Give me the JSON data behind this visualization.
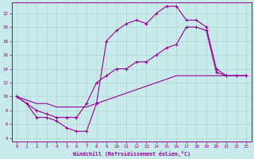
{
  "xlabel": "Windchill (Refroidissement éolien,°C)",
  "bg_color": "#c8eaea",
  "line_color": "#990099",
  "xlim": [
    -0.5,
    23.5
  ],
  "ylim": [
    3.5,
    23.5
  ],
  "xticks": [
    0,
    1,
    2,
    3,
    4,
    5,
    6,
    7,
    8,
    9,
    10,
    11,
    12,
    13,
    14,
    15,
    16,
    17,
    18,
    19,
    20,
    21,
    22,
    23
  ],
  "yticks": [
    4,
    6,
    8,
    10,
    12,
    14,
    16,
    18,
    20,
    22
  ],
  "curve1_x": [
    0,
    1,
    2,
    3,
    4,
    5,
    6,
    7,
    8,
    9,
    10,
    11,
    12,
    13,
    14,
    15,
    16,
    17,
    18,
    19,
    20,
    21,
    22,
    23
  ],
  "curve1_y": [
    10,
    9,
    7,
    7,
    6.5,
    5.5,
    5,
    5,
    9,
    18,
    19.5,
    20.5,
    21,
    20.5,
    22,
    23,
    23,
    21,
    21,
    20,
    14,
    13,
    13,
    13
  ],
  "curve2_x": [
    0,
    1,
    2,
    3,
    4,
    5,
    6,
    7,
    8,
    9,
    10,
    11,
    12,
    13,
    14,
    15,
    16,
    17,
    18,
    19,
    20,
    21,
    22,
    23
  ],
  "curve2_y": [
    10,
    9.5,
    9,
    9,
    8.5,
    8.5,
    8.5,
    8.5,
    9,
    9.5,
    10,
    10.5,
    11,
    11.5,
    12,
    12.5,
    13,
    13,
    13,
    13,
    13,
    13,
    13,
    13
  ],
  "curve3_x": [
    0,
    2,
    3,
    4,
    5,
    6,
    7,
    8,
    9,
    10,
    11,
    12,
    13,
    14,
    15,
    16,
    17,
    18,
    19,
    20,
    21,
    22,
    23
  ],
  "curve3_y": [
    10,
    8,
    7.5,
    7,
    7,
    7,
    9,
    12,
    13,
    14,
    14,
    15,
    15,
    16,
    17,
    17.5,
    20,
    20,
    19.5,
    13.5,
    13,
    13,
    13
  ]
}
